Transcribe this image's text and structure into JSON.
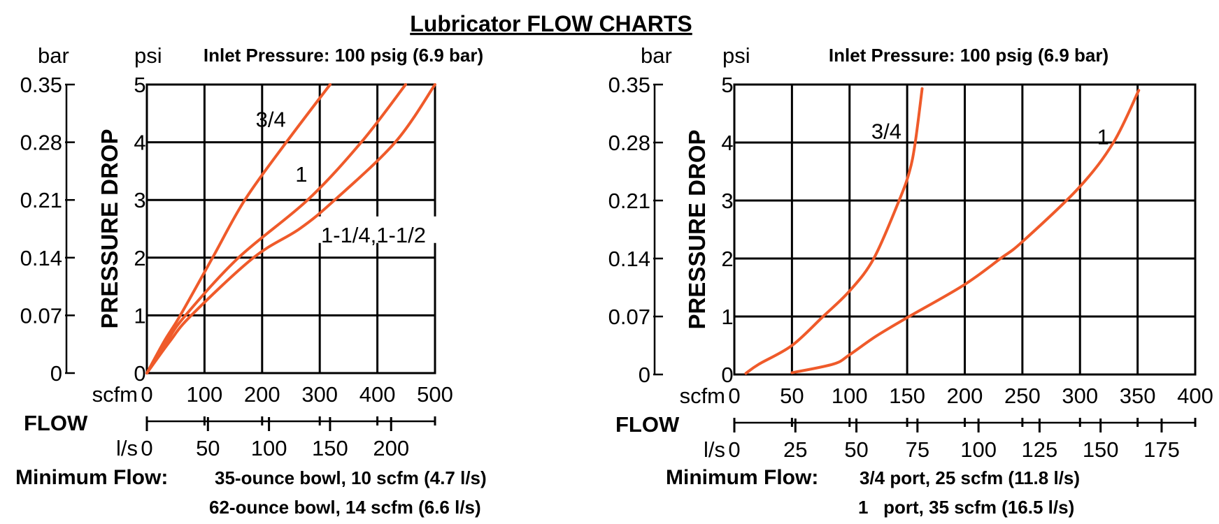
{
  "page_title": "Lubricator FLOW CHARTS",
  "colors": {
    "curve": "#ef5a2a",
    "grid": "#000000"
  },
  "chart_data": [
    {
      "type": "line",
      "title": "Inlet Pressure: 100 psig (6.9 bar)",
      "ylabel": "PRESSURE DROP",
      "xlabel": "FLOW",
      "y_unit_primary": "psi",
      "y_unit_secondary": "bar",
      "x_unit_primary": "scfm",
      "x_unit_secondary": "l/s",
      "xlim": [
        0,
        500
      ],
      "ylim": [
        0,
        5
      ],
      "grid": true,
      "y_ticks_psi": [
        "0",
        "1",
        "2",
        "3",
        "4",
        "5"
      ],
      "y_ticks_bar": [
        "0",
        "0.07",
        "0.14",
        "0.21",
        "0.28",
        "0.35"
      ],
      "x_ticks_scfm": [
        "0",
        "100",
        "200",
        "300",
        "400",
        "500"
      ],
      "x_ticks_ls": [
        "0",
        "50",
        "100",
        "150",
        "200"
      ],
      "series": [
        {
          "name": "3/4",
          "points": [
            [
              0,
              0
            ],
            [
              30,
              0.55
            ],
            [
              58,
              1
            ],
            [
              114,
              2
            ],
            [
              170,
              3
            ],
            [
              242,
              4
            ],
            [
              318,
              5
            ]
          ],
          "label_at": [
            215,
            4.4
          ]
        },
        {
          "name": "1",
          "points": [
            [
              0,
              0
            ],
            [
              35,
              0.55
            ],
            [
              67,
              1
            ],
            [
              159,
              2
            ],
            [
              279,
              3
            ],
            [
              372,
              4
            ],
            [
              449,
              5
            ]
          ],
          "label_at": [
            268,
            3.45
          ]
        },
        {
          "name": "1-1/4,1-1/2",
          "points": [
            [
              0,
              0
            ],
            [
              40,
              0.55
            ],
            [
              77,
              1
            ],
            [
              185,
              2
            ],
            [
              265,
              2.5
            ],
            [
              326,
              3
            ],
            [
              431,
              4
            ],
            [
              500,
              5
            ]
          ],
          "label_at": [
            375,
            2.4
          ]
        }
      ],
      "notes": {
        "label": "Minimum Flow:",
        "lines": [
          "35-ounce bowl, 10 scfm (4.7 l/s)",
          "62-ounce bowl, 14 scfm (6.6 l/s)"
        ]
      }
    },
    {
      "type": "line",
      "title": "Inlet Pressure: 100 psig (6.9 bar)",
      "ylabel": "PRESSURE DROP",
      "xlabel": "FLOW",
      "y_unit_primary": "psi",
      "y_unit_secondary": "bar",
      "x_unit_primary": "scfm",
      "x_unit_secondary": "l/s",
      "xlim": [
        0,
        400
      ],
      "ylim": [
        0,
        5
      ],
      "grid": true,
      "y_ticks_psi": [
        "0",
        "1",
        "2",
        "3",
        "4",
        "5"
      ],
      "y_ticks_bar": [
        "0",
        "0.07",
        "0.14",
        "0.21",
        "0.28",
        "0.35"
      ],
      "x_ticks_scfm": [
        "0",
        "50",
        "100",
        "150",
        "200",
        "250",
        "300",
        "350",
        "400"
      ],
      "x_ticks_ls": [
        "0",
        "25",
        "50",
        "75",
        "100",
        "125",
        "150",
        "175"
      ],
      "series": [
        {
          "name": "3/4",
          "points": [
            [
              10,
              0.02
            ],
            [
              21.5,
              0.18
            ],
            [
              50,
              0.5
            ],
            [
              77,
              1.0
            ],
            [
              100,
              1.44
            ],
            [
              121,
              2.0
            ],
            [
              143,
              3.0
            ],
            [
              152,
              3.5
            ],
            [
              157,
              4.0
            ],
            [
              163,
              4.93
            ]
          ],
          "label_at": [
            132,
            4.2
          ]
        },
        {
          "name": "1",
          "points": [
            [
              50,
              0.03
            ],
            [
              86,
              0.18
            ],
            [
              100,
              0.34
            ],
            [
              123,
              0.66
            ],
            [
              150,
              0.98
            ],
            [
              199,
              1.54
            ],
            [
              231,
              2.0
            ],
            [
              250,
              2.29
            ],
            [
              299,
              3.22
            ],
            [
              329,
              4.0
            ],
            [
              351,
              4.9
            ]
          ],
          "label_at": [
            320,
            4.1
          ]
        }
      ],
      "notes": {
        "label": "Minimum Flow:",
        "lines": [
          "3/4 port, 25 scfm (11.8 l/s)",
          "1   port, 35 scfm (16.5 l/s)"
        ]
      }
    }
  ]
}
